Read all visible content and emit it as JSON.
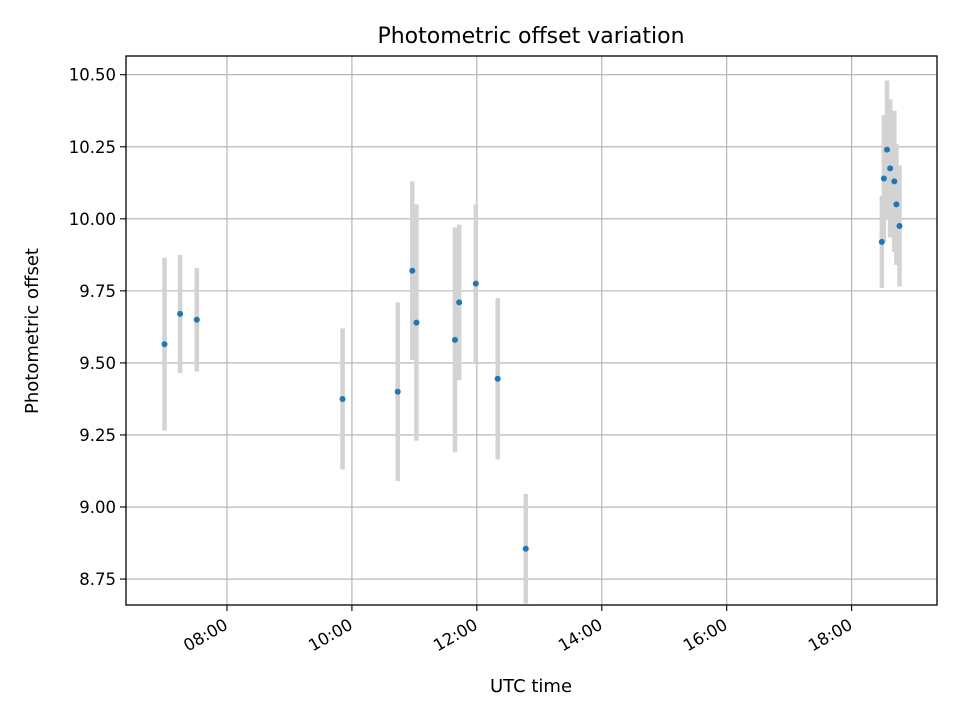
{
  "chart_data": {
    "type": "scatter",
    "title": "Photometric offset variation",
    "xlabel": "UTC time",
    "ylabel": "Photometric offset",
    "xlim": [
      "06:23",
      "19:22"
    ],
    "ylim": [
      8.66,
      10.565
    ],
    "grid": true,
    "x_ticks": [
      "08:00",
      "10:00",
      "12:00",
      "14:00",
      "16:00",
      "18:00"
    ],
    "y_ticks": [
      "8.75",
      "9.00",
      "9.25",
      "9.50",
      "9.75",
      "10.00",
      "10.25",
      "10.50"
    ],
    "colors": {
      "point": "#1f77b4",
      "errorbar": "#d3d3d3",
      "grid": "#b0b0b0"
    },
    "points": [
      {
        "x": "07:00",
        "y": 9.565,
        "err": 0.3
      },
      {
        "x": "07:15",
        "y": 9.67,
        "err": 0.205
      },
      {
        "x": "07:31",
        "y": 9.65,
        "err": 0.18
      },
      {
        "x": "09:51",
        "y": 9.375,
        "err": 0.245
      },
      {
        "x": "10:44",
        "y": 9.4,
        "err": 0.31
      },
      {
        "x": "10:58",
        "y": 9.82,
        "err": 0.31
      },
      {
        "x": "11:02",
        "y": 9.64,
        "err": 0.41
      },
      {
        "x": "11:39",
        "y": 9.58,
        "err": 0.39
      },
      {
        "x": "11:43",
        "y": 9.71,
        "err": 0.27
      },
      {
        "x": "11:59",
        "y": 9.775,
        "err": 0.275
      },
      {
        "x": "12:20",
        "y": 9.445,
        "err": 0.28
      },
      {
        "x": "12:47",
        "y": 8.855,
        "err": 0.19
      },
      {
        "x": "18:29",
        "y": 9.92,
        "err": 0.16
      },
      {
        "x": "18:31",
        "y": 10.14,
        "err": 0.22
      },
      {
        "x": "18:34",
        "y": 10.24,
        "err": 0.24
      },
      {
        "x": "18:37",
        "y": 10.175,
        "err": 0.24
      },
      {
        "x": "18:41",
        "y": 10.13,
        "err": 0.245
      },
      {
        "x": "18:43",
        "y": 10.05,
        "err": 0.21
      },
      {
        "x": "18:46",
        "y": 9.975,
        "err": 0.21
      }
    ]
  }
}
